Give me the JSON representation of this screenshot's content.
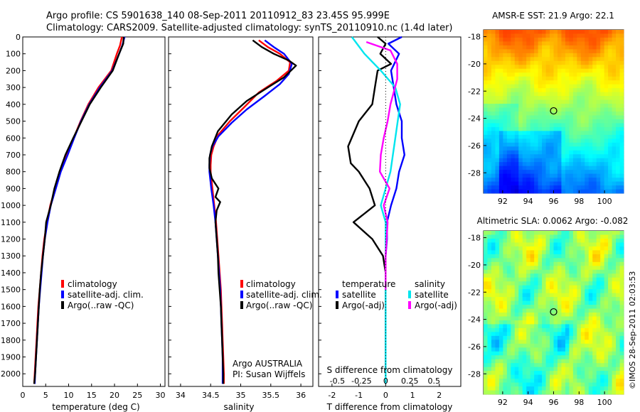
{
  "header": {
    "line1": "Argo profile: CS 5901638_140 08-Sep-2011 20110912_83 23.45S 95.999E",
    "line2": "Climatology: CARS2009. Satellite-adjusted climatology: synTS_20110910.nc (1.4d later)"
  },
  "footer_stamp": "©IMOS 28-Sep-2011 02:03:53",
  "colors": {
    "climatology": "#ff0000",
    "satellite": "#0000ff",
    "argo": "#000000",
    "cyan": "#00e5ee",
    "magenta": "#ff00ff"
  },
  "chart_data": [
    {
      "type": "line",
      "name": "temperature-panel",
      "xlabel": "temperature (deg C)",
      "xlim": [
        0,
        31
      ],
      "ylim": [
        0,
        2075
      ],
      "xticks": [
        0,
        5,
        10,
        15,
        20,
        25,
        30
      ],
      "yticks": [
        0,
        100,
        200,
        300,
        400,
        500,
        600,
        700,
        800,
        900,
        1000,
        1100,
        1200,
        1300,
        1400,
        1500,
        1600,
        1700,
        1800,
        1900,
        2000
      ],
      "legend": [
        "climatology",
        "satellite-adj. clim.",
        "Argo(..raw -QC)"
      ],
      "series": [
        {
          "name": "climatology",
          "color": "#ff0000",
          "points": [
            [
              21.6,
              0
            ],
            [
              21.2,
              50
            ],
            [
              20.5,
              100
            ],
            [
              19.3,
              200
            ],
            [
              16.5,
              300
            ],
            [
              14.3,
              400
            ],
            [
              12.6,
              500
            ],
            [
              11.1,
              600
            ],
            [
              9.6,
              700
            ],
            [
              8.2,
              800
            ],
            [
              7.1,
              900
            ],
            [
              6.0,
              1000
            ],
            [
              5.3,
              1100
            ],
            [
              4.7,
              1200
            ],
            [
              4.3,
              1300
            ],
            [
              4.0,
              1400
            ],
            [
              3.7,
              1500
            ],
            [
              3.4,
              1600
            ],
            [
              3.2,
              1700
            ],
            [
              3.0,
              1800
            ],
            [
              2.8,
              1900
            ],
            [
              2.6,
              2000
            ],
            [
              2.5,
              2060
            ]
          ]
        },
        {
          "name": "satellite-adj. clim.",
          "color": "#0000ff",
          "points": [
            [
              22.2,
              0
            ],
            [
              21.7,
              50
            ],
            [
              21.0,
              100
            ],
            [
              19.5,
              200
            ],
            [
              16.8,
              300
            ],
            [
              14.5,
              400
            ],
            [
              12.7,
              500
            ],
            [
              11.2,
              600
            ],
            [
              9.8,
              700
            ],
            [
              8.3,
              800
            ],
            [
              7.2,
              900
            ],
            [
              6.1,
              1000
            ],
            [
              5.4,
              1100
            ],
            [
              4.8,
              1200
            ],
            [
              4.4,
              1300
            ],
            [
              4.1,
              1400
            ],
            [
              3.8,
              1500
            ],
            [
              3.5,
              1600
            ],
            [
              3.3,
              1700
            ],
            [
              3.1,
              1800
            ],
            [
              2.9,
              1900
            ],
            [
              2.7,
              2000
            ],
            [
              2.6,
              2060
            ]
          ]
        },
        {
          "name": "Argo(..raw -QC)",
          "color": "#000000",
          "points": [
            [
              22.0,
              0
            ],
            [
              21.9,
              40
            ],
            [
              21.0,
              100
            ],
            [
              19.6,
              200
            ],
            [
              17.0,
              300
            ],
            [
              14.6,
              400
            ],
            [
              12.8,
              500
            ],
            [
              11.0,
              600
            ],
            [
              9.3,
              700
            ],
            [
              8.0,
              800
            ],
            [
              6.9,
              900
            ],
            [
              6.1,
              1000
            ],
            [
              5.1,
              1100
            ],
            [
              4.8,
              1200
            ],
            [
              4.4,
              1300
            ],
            [
              4.0,
              1400
            ],
            [
              3.7,
              1500
            ],
            [
              3.5,
              1600
            ],
            [
              3.3,
              1700
            ],
            [
              3.1,
              1800
            ],
            [
              2.9,
              1900
            ],
            [
              2.7,
              2000
            ],
            [
              2.5,
              2060
            ]
          ]
        }
      ]
    },
    {
      "type": "line",
      "name": "salinity-panel",
      "xlabel": "salinity",
      "xlim": [
        33.8,
        36.2
      ],
      "ylim": [
        0,
        2075
      ],
      "xticks": [
        34,
        34.5,
        35,
        35.5,
        36
      ],
      "xticklabels": [
        "34",
        "34.5",
        "35",
        "35.5",
        "36"
      ],
      "legend": [
        "climatology",
        "satellite-adj. clim.",
        "Argo(..raw -QC)"
      ],
      "annotation": [
        "Argo AUSTRALIA",
        "PI: Susan Wijffels"
      ],
      "series": [
        {
          "name": "climatology",
          "color": "#ff0000",
          "points": [
            [
              35.3,
              20
            ],
            [
              35.45,
              60
            ],
            [
              35.65,
              100
            ],
            [
              35.82,
              150
            ],
            [
              35.8,
              200
            ],
            [
              35.6,
              260
            ],
            [
              35.3,
              330
            ],
            [
              35.05,
              420
            ],
            [
              34.82,
              500
            ],
            [
              34.63,
              580
            ],
            [
              34.55,
              650
            ],
            [
              34.51,
              700
            ],
            [
              34.5,
              760
            ],
            [
              34.5,
              800
            ],
            [
              34.53,
              900
            ],
            [
              34.56,
              1000
            ],
            [
              34.59,
              1100
            ],
            [
              34.61,
              1200
            ],
            [
              34.63,
              1300
            ],
            [
              34.65,
              1400
            ],
            [
              34.67,
              1500
            ],
            [
              34.68,
              1600
            ],
            [
              34.69,
              1700
            ],
            [
              34.7,
              1800
            ],
            [
              34.71,
              1900
            ],
            [
              34.72,
              2000
            ],
            [
              34.72,
              2060
            ]
          ]
        },
        {
          "name": "satellite-adj. clim.",
          "color": "#0000ff",
          "points": [
            [
              35.4,
              20
            ],
            [
              35.55,
              60
            ],
            [
              35.72,
              100
            ],
            [
              35.85,
              160
            ],
            [
              35.8,
              220
            ],
            [
              35.65,
              280
            ],
            [
              35.4,
              350
            ],
            [
              35.1,
              430
            ],
            [
              34.85,
              510
            ],
            [
              34.63,
              590
            ],
            [
              34.53,
              650
            ],
            [
              34.49,
              700
            ],
            [
              34.48,
              760
            ],
            [
              34.48,
              800
            ],
            [
              34.51,
              900
            ],
            [
              34.55,
              1000
            ],
            [
              34.58,
              1100
            ],
            [
              34.6,
              1200
            ],
            [
              34.62,
              1300
            ],
            [
              34.64,
              1400
            ],
            [
              34.66,
              1500
            ],
            [
              34.67,
              1600
            ],
            [
              34.68,
              1700
            ],
            [
              34.69,
              1800
            ],
            [
              34.7,
              1900
            ],
            [
              34.7,
              2000
            ],
            [
              34.7,
              2060
            ]
          ]
        },
        {
          "name": "Argo(..raw -QC)",
          "color": "#000000",
          "points": [
            [
              35.2,
              20
            ],
            [
              35.35,
              60
            ],
            [
              35.55,
              100
            ],
            [
              35.8,
              140
            ],
            [
              35.92,
              170
            ],
            [
              35.72,
              240
            ],
            [
              35.45,
              300
            ],
            [
              35.1,
              380
            ],
            [
              34.85,
              460
            ],
            [
              34.62,
              560
            ],
            [
              34.52,
              650
            ],
            [
              34.48,
              720
            ],
            [
              34.48,
              780
            ],
            [
              34.52,
              840
            ],
            [
              34.63,
              900
            ],
            [
              34.58,
              950
            ],
            [
              34.66,
              980
            ],
            [
              34.6,
              1030
            ],
            [
              34.58,
              1100
            ],
            [
              34.6,
              1200
            ],
            [
              34.62,
              1300
            ],
            [
              34.63,
              1400
            ],
            [
              34.65,
              1500
            ],
            [
              34.67,
              1600
            ],
            [
              34.68,
              1700
            ],
            [
              34.69,
              1800
            ],
            [
              34.7,
              1900
            ],
            [
              34.71,
              2000
            ],
            [
              34.71,
              2060
            ]
          ]
        }
      ]
    },
    {
      "type": "line",
      "name": "difference-panel",
      "xlabel": "T difference from climatology",
      "xlabel_top": "S difference from climatology",
      "xlim": [
        -2.5,
        2.8
      ],
      "ylim": [
        0,
        2075
      ],
      "xticks_T": [
        -2,
        -1,
        0,
        1,
        2
      ],
      "xticks_S": [
        -0.5,
        -0.25,
        0,
        0.25,
        0.5
      ],
      "xticklabels_S": [
        "-0.5",
        "-0.25",
        "0",
        "0.25",
        "0.5"
      ],
      "legend_groups": [
        {
          "title": "temperature",
          "items": [
            "satellite",
            "Argo(-adj)"
          ]
        },
        {
          "title": "salinity",
          "items": [
            "satellite",
            "Argo(-adj)"
          ]
        }
      ],
      "series": [
        {
          "name": "temperature satellite",
          "color": "#0000ff",
          "points": [
            [
              0.6,
              0
            ],
            [
              0.1,
              40
            ],
            [
              0.5,
              100
            ],
            [
              0.2,
              200
            ],
            [
              0.3,
              300
            ],
            [
              0.4,
              400
            ],
            [
              0.6,
              500
            ],
            [
              0.6,
              600
            ],
            [
              0.7,
              700
            ],
            [
              0.5,
              800
            ],
            [
              0.4,
              900
            ],
            [
              0.2,
              1000
            ],
            [
              0.05,
              1100
            ],
            [
              0.05,
              1200
            ],
            [
              0.0,
              1300
            ],
            [
              0.0,
              1500
            ],
            [
              0.0,
              1700
            ],
            [
              0.0,
              2000
            ]
          ]
        },
        {
          "name": "temperature Argo(-adj)",
          "color": "#000000",
          "points": [
            [
              -0.3,
              0
            ],
            [
              0.0,
              40
            ],
            [
              -0.2,
              100
            ],
            [
              0.2,
              160
            ],
            [
              -0.3,
              200
            ],
            [
              -0.4,
              300
            ],
            [
              -0.5,
              400
            ],
            [
              -1.0,
              500
            ],
            [
              -1.4,
              650
            ],
            [
              -1.3,
              750
            ],
            [
              -1.0,
              800
            ],
            [
              -0.6,
              900
            ],
            [
              -0.4,
              1000
            ],
            [
              -1.2,
              1100
            ],
            [
              -0.5,
              1200
            ],
            [
              -0.1,
              1300
            ],
            [
              0.0,
              1400
            ],
            [
              0.0,
              1600
            ],
            [
              0.0,
              1800
            ],
            [
              0.0,
              2000
            ]
          ]
        },
        {
          "name": "salinity satellite",
          "color": "#00e5ee",
          "points": [
            [
              -0.35,
              0
            ],
            [
              -0.22,
              100
            ],
            [
              -0.05,
              200
            ],
            [
              0.1,
              300
            ],
            [
              0.15,
              400
            ],
            [
              0.1,
              600
            ],
            [
              0.05,
              800
            ],
            [
              0.0,
              900
            ],
            [
              -0.05,
              1000
            ],
            [
              0.0,
              1100
            ],
            [
              0.0,
              1300
            ],
            [
              0.0,
              1600
            ],
            [
              0.0,
              1900
            ],
            [
              0.0,
              2060
            ]
          ]
        },
        {
          "name": "salinity Argo(-adj)",
          "color": "#ff00ff",
          "points": [
            [
              -0.2,
              30
            ],
            [
              0.05,
              80
            ],
            [
              0.12,
              160
            ],
            [
              0.12,
              250
            ],
            [
              0.05,
              400
            ],
            [
              0.02,
              500
            ],
            [
              -0.02,
              600
            ],
            [
              -0.05,
              700
            ],
            [
              -0.06,
              800
            ],
            [
              0.04,
              900
            ],
            [
              -0.02,
              1000
            ],
            [
              0.02,
              1100
            ],
            [
              0.0,
              1300
            ],
            [
              0.0,
              1500
            ]
          ]
        }
      ]
    },
    {
      "type": "heatmap",
      "name": "sst-map",
      "title": "AMSR-E SST: 21.9 Argo: 22.1",
      "xlim": [
        90.5,
        101.5
      ],
      "ylim": [
        -29.5,
        -17.5
      ],
      "xticks": [
        92,
        94,
        96,
        98,
        100
      ],
      "yticks": [
        -18,
        -20,
        -22,
        -24,
        -26,
        -28
      ],
      "marker": [
        96.0,
        -23.45
      ]
    },
    {
      "type": "heatmap",
      "name": "sla-map",
      "title": "Altimetric SLA: 0.0062 Argo: -0.082",
      "xlim": [
        90.5,
        101.5
      ],
      "ylim": [
        -29.5,
        -17.5
      ],
      "xticks": [
        92,
        94,
        96,
        98,
        100
      ],
      "yticks": [
        -18,
        -20,
        -22,
        -24,
        -26,
        -28
      ],
      "marker": [
        96.0,
        -23.45
      ]
    }
  ]
}
